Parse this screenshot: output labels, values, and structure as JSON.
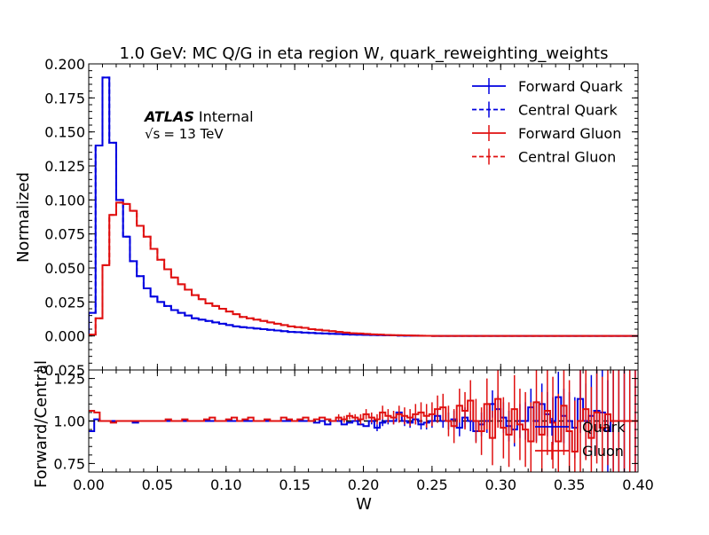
{
  "chart_data": {
    "type": "line",
    "title": "1.0 GeV: MC Q/G in eta region W, quark_reweighting_weights",
    "xlabel": "W",
    "xlim": [
      0.0,
      0.4
    ],
    "xticks": [
      "0.00",
      "0.05",
      "0.10",
      "0.15",
      "0.20",
      "0.25",
      "0.30",
      "0.35",
      "0.40"
    ],
    "annotation": {
      "atlas": "ATLAS",
      "status": "Internal",
      "energy_sqrt": "√s",
      "energy_value": "= 13 TeV"
    },
    "top_panel": {
      "ylabel": "Normalized",
      "ylim": [
        -0.025,
        0.2
      ],
      "yticks": [
        "−0.025",
        "0.000",
        "0.025",
        "0.050",
        "0.075",
        "0.100",
        "0.125",
        "0.150",
        "0.175",
        "0.200"
      ],
      "bin_width": 0.005,
      "legend": {
        "placement": "top-right",
        "entries": [
          "Forward Quark",
          "Central Quark",
          "Forward Gluon",
          "Central Gluon"
        ]
      },
      "series": [
        {
          "name": "Forward Quark",
          "color": "#0000e0",
          "style": "solid",
          "values": [
            0.017,
            0.14,
            0.19,
            0.142,
            0.1,
            0.073,
            0.055,
            0.044,
            0.035,
            0.029,
            0.025,
            0.022,
            0.019,
            0.017,
            0.015,
            0.013,
            0.012,
            0.011,
            0.01,
            0.009,
            0.008,
            0.007,
            0.0065,
            0.006,
            0.0055,
            0.005,
            0.0045,
            0.004,
            0.0035,
            0.003,
            0.0028,
            0.0025,
            0.0022,
            0.002,
            0.0018,
            0.0016,
            0.0014,
            0.0012,
            0.001,
            0.0009,
            0.0008,
            0.0007,
            0.0006,
            0.0005,
            0.0004,
            0.0003,
            0.0002,
            0.0002,
            0.0001,
            0.0001
          ]
        },
        {
          "name": "Central Quark",
          "color": "#0000e0",
          "style": "dashed",
          "values": [
            0.017,
            0.14,
            0.19,
            0.142,
            0.1,
            0.073,
            0.055,
            0.044,
            0.035,
            0.029,
            0.025,
            0.022,
            0.019,
            0.017,
            0.015,
            0.013,
            0.012,
            0.011,
            0.01,
            0.009,
            0.008,
            0.007,
            0.0065,
            0.006,
            0.0055,
            0.005,
            0.0045,
            0.004,
            0.0035,
            0.003,
            0.0028,
            0.0025,
            0.0022,
            0.002,
            0.0018,
            0.0016,
            0.0014,
            0.0012,
            0.001,
            0.0009,
            0.0008,
            0.0007,
            0.0006,
            0.0005,
            0.0004,
            0.0003,
            0.0002,
            0.0002,
            0.0001,
            0.0001
          ]
        },
        {
          "name": "Forward Gluon",
          "color": "#e01010",
          "style": "solid",
          "values": [
            0.001,
            0.013,
            0.052,
            0.089,
            0.098,
            0.097,
            0.092,
            0.081,
            0.073,
            0.064,
            0.056,
            0.049,
            0.043,
            0.038,
            0.034,
            0.03,
            0.027,
            0.024,
            0.022,
            0.02,
            0.018,
            0.016,
            0.014,
            0.013,
            0.012,
            0.011,
            0.01,
            0.009,
            0.008,
            0.007,
            0.0065,
            0.006,
            0.005,
            0.0045,
            0.004,
            0.0035,
            0.003,
            0.0025,
            0.002,
            0.0018,
            0.0015,
            0.0012,
            0.001,
            0.0008,
            0.0006,
            0.0005,
            0.0004,
            0.0003,
            0.0002,
            0.0001
          ]
        },
        {
          "name": "Central Gluon",
          "color": "#e01010",
          "style": "dashed",
          "values": [
            0.001,
            0.013,
            0.052,
            0.089,
            0.098,
            0.097,
            0.092,
            0.081,
            0.073,
            0.064,
            0.056,
            0.049,
            0.043,
            0.038,
            0.034,
            0.03,
            0.027,
            0.024,
            0.022,
            0.02,
            0.018,
            0.016,
            0.014,
            0.013,
            0.012,
            0.011,
            0.01,
            0.009,
            0.008,
            0.007,
            0.0065,
            0.006,
            0.005,
            0.0045,
            0.004,
            0.0035,
            0.003,
            0.0025,
            0.002,
            0.0018,
            0.0015,
            0.0012,
            0.001,
            0.0008,
            0.0006,
            0.0005,
            0.0004,
            0.0003,
            0.0002,
            0.0001
          ]
        }
      ]
    },
    "ratio_panel": {
      "ylabel": "Forward/Central",
      "ylim": [
        0.7,
        1.3
      ],
      "yticks": [
        "0.75",
        "1.00",
        "1.25"
      ],
      "reference_line": 1.0,
      "bin_width": 0.005,
      "legend": {
        "placement": "bottom-right",
        "entries": [
          "Quark",
          "Gluon"
        ]
      },
      "series": [
        {
          "name": "Quark",
          "color": "#0000e0",
          "values": [
            0.94,
            1.01,
            1.0,
            1.0,
            1.0,
            1.0,
            1.0,
            1.0,
            0.99,
            1.0,
            1.0,
            1.0,
            1.0,
            1.0,
            1.0,
            1.0,
            1.0,
            1.0,
            1.0,
            1.0,
            1.0,
            1.0,
            1.0,
            1.0,
            1.0,
            1.0,
            1.0,
            1.0,
            1.0,
            1.0,
            1.0,
            1.0,
            1.0,
            1.0,
            1.0,
            1.0,
            1.0,
            1.0,
            1.0,
            1.0,
            1.0,
            0.99,
            1.0,
            0.98,
            1.0,
            1.0,
            0.98,
            0.99,
            1.0,
            0.98,
            0.97,
            1.0,
            0.96,
            0.99,
            1.0,
            1.0,
            1.05,
            1.0,
            0.99,
            1.01,
            0.98,
            0.99,
            1.0,
            1.03,
            1.0,
            1.0,
            1.01,
            0.96,
            1.02,
            1.0,
            0.94,
            0.98,
            1.0,
            1.1,
            1.07,
            1.02,
            0.97,
            0.95,
            1.0,
            1.0,
            1.08,
            1.0,
            1.1,
            1.04,
            1.0,
            1.14,
            1.03,
            1.0,
            0.96,
            1.13,
            1.0,
            1.03,
            1.06,
            1.05,
            0.94,
            1.0,
            1.0,
            1.0,
            1.0,
            1.0
          ],
          "errors": [
            0.01,
            0.005,
            0.005,
            0.005,
            0.005,
            0.005,
            0.005,
            0.005,
            0.005,
            0.005,
            0.005,
            0.005,
            0.005,
            0.005,
            0.005,
            0.005,
            0.005,
            0.005,
            0.005,
            0.005,
            0.005,
            0.005,
            0.005,
            0.005,
            0.005,
            0.005,
            0.005,
            0.005,
            0.005,
            0.005,
            0.005,
            0.005,
            0.005,
            0.005,
            0.005,
            0.005,
            0.005,
            0.005,
            0.005,
            0.005,
            0.005,
            0.005,
            0.005,
            0.005,
            0.005,
            0.005,
            0.01,
            0.01,
            0.01,
            0.01,
            0.01,
            0.02,
            0.02,
            0.02,
            0.02,
            0.02,
            0.03,
            0.03,
            0.03,
            0.03,
            0.03,
            0.04,
            0.04,
            0.04,
            0.04,
            0.05,
            0.05,
            0.05,
            0.06,
            0.06,
            0.06,
            0.07,
            0.07,
            0.08,
            0.08,
            0.09,
            0.09,
            0.1,
            0.1,
            0.11,
            0.11,
            0.12,
            0.12,
            0.13,
            0.14,
            0.15,
            0.16,
            0.17,
            0.18,
            0.2,
            0.22,
            0.24,
            0.26,
            0.28,
            0.3,
            0.3,
            0.3,
            0.3,
            0.3,
            0.3
          ]
        },
        {
          "name": "Gluon",
          "color": "#e01010",
          "values": [
            1.06,
            1.05,
            1.0,
            1.0,
            0.99,
            1.0,
            1.0,
            1.0,
            1.0,
            1.0,
            1.0,
            1.0,
            1.0,
            1.0,
            1.01,
            1.0,
            1.0,
            1.01,
            1.0,
            1.0,
            1.0,
            1.01,
            1.02,
            1.0,
            1.0,
            1.01,
            1.02,
            1.0,
            1.01,
            1.02,
            1.0,
            1.0,
            1.01,
            1.0,
            1.0,
            1.02,
            1.01,
            1.0,
            1.01,
            1.02,
            1.0,
            1.01,
            1.02,
            1.01,
            1.0,
            1.02,
            1.01,
            1.03,
            1.02,
            1.01,
            1.04,
            1.02,
            1.01,
            1.05,
            1.03,
            1.02,
            1.04,
            1.03,
            1.02,
            1.04,
            1.05,
            1.03,
            1.04,
            1.07,
            1.08,
            1.0,
            0.97,
            1.09,
            1.06,
            1.12,
            1.0,
            0.94,
            1.1,
            0.9,
            1.13,
            0.96,
            0.92,
            1.07,
            0.98,
            0.95,
            0.88,
            1.11,
            0.92,
            1.06,
            0.99,
            0.88,
            1.09,
            0.94,
            0.82,
            1.0,
            1.07,
            0.9,
            1.05,
            0.96,
            1.04,
            1.0,
            1.0,
            1.0,
            1.0,
            1.0
          ],
          "errors": [
            0.01,
            0.01,
            0.005,
            0.005,
            0.005,
            0.005,
            0.005,
            0.005,
            0.005,
            0.005,
            0.005,
            0.005,
            0.005,
            0.005,
            0.005,
            0.005,
            0.005,
            0.005,
            0.005,
            0.005,
            0.005,
            0.005,
            0.005,
            0.005,
            0.005,
            0.005,
            0.005,
            0.005,
            0.005,
            0.005,
            0.005,
            0.005,
            0.005,
            0.005,
            0.005,
            0.005,
            0.005,
            0.005,
            0.01,
            0.01,
            0.01,
            0.01,
            0.01,
            0.01,
            0.01,
            0.02,
            0.02,
            0.02,
            0.02,
            0.03,
            0.03,
            0.03,
            0.03,
            0.04,
            0.04,
            0.04,
            0.05,
            0.05,
            0.05,
            0.06,
            0.06,
            0.07,
            0.07,
            0.08,
            0.08,
            0.09,
            0.1,
            0.1,
            0.11,
            0.12,
            0.13,
            0.14,
            0.15,
            0.16,
            0.17,
            0.18,
            0.19,
            0.2,
            0.21,
            0.22,
            0.23,
            0.24,
            0.25,
            0.26,
            0.27,
            0.28,
            0.29,
            0.3,
            0.3,
            0.3,
            0.3,
            0.3,
            0.3,
            0.3,
            0.3,
            0.3,
            0.3,
            0.3,
            0.3,
            0.3
          ]
        }
      ]
    }
  }
}
